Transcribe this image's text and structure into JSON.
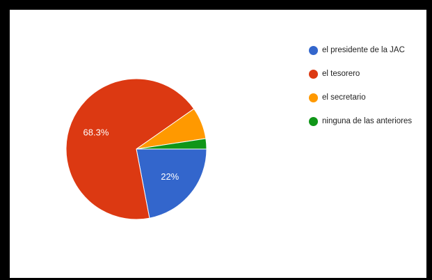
{
  "chart_data": {
    "type": "pie",
    "categories": [
      "el presidente de la JAC",
      "el tesorero",
      "el secretario",
      "ninguna de las anteriores"
    ],
    "values": [
      22,
      68.3,
      7.3,
      2.4
    ],
    "data_labels": [
      "22%",
      "68.3%",
      "",
      ""
    ],
    "colors": [
      "#3366cc",
      "#dc3912",
      "#ff9900",
      "#109618"
    ],
    "legend_position": "right",
    "title": ""
  }
}
